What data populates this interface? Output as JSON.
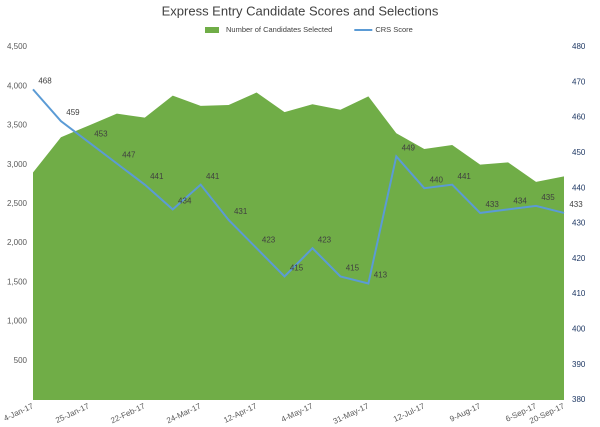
{
  "chart_data": {
    "type": "area-line",
    "title": "Express Entry Candidate Scores and Selections",
    "categories": [
      "4-Jan-17",
      null,
      "25-Jan-17",
      null,
      "22-Feb-17",
      null,
      "24-Mar-17",
      null,
      "12-Apr-17",
      null,
      "4-May-17",
      null,
      "31-May-17",
      null,
      "12-Jul-17",
      null,
      "9-Aug-17",
      null,
      "6-Sep-17",
      "20-Sep-17"
    ],
    "series": [
      {
        "name": "Number of Candidates Selected",
        "color": "#70ad47",
        "type": "area",
        "values": [
          2900,
          3350,
          3500,
          3650,
          3600,
          3880,
          3750,
          3760,
          3920,
          3670,
          3770,
          3700,
          3870,
          3400,
          3200,
          3250,
          3000,
          3030,
          2780,
          2850
        ]
      },
      {
        "name": "CRS Score",
        "color": "#5b9bd5",
        "type": "line",
        "axis": "y2",
        "values": [
          468,
          459,
          453,
          447,
          441,
          434,
          441,
          431,
          423,
          415,
          423,
          415,
          413,
          449,
          440,
          441,
          433,
          434,
          435,
          433
        ]
      }
    ],
    "ylim": [
      0,
      4500
    ],
    "yticks": [
      500,
      {
        "value": 1000,
        "label": "1,000"
      },
      {
        "value": 1500,
        "label": "1,500"
      },
      {
        "value": 2000,
        "label": "2,000"
      },
      {
        "value": 2500,
        "label": "2,500"
      },
      {
        "value": 3000,
        "label": "3,000"
      },
      {
        "value": 3500,
        "label": "3,500"
      },
      {
        "value": 4000,
        "label": "4,000"
      },
      {
        "value": 4500,
        "label": "4,500"
      }
    ],
    "y2lim": [
      380,
      480
    ],
    "y2ticks": [
      380,
      390,
      400,
      410,
      420,
      430,
      440,
      450,
      460,
      470,
      480
    ],
    "legend": "top"
  }
}
